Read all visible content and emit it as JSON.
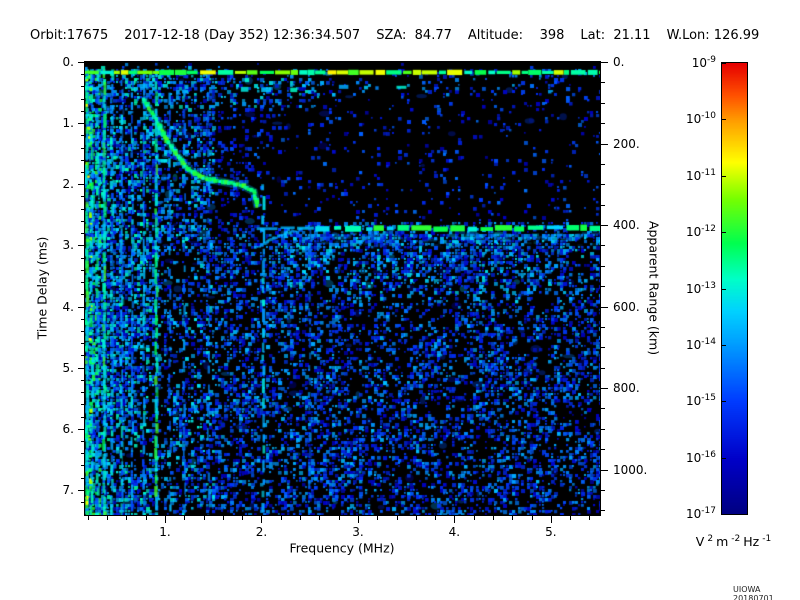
{
  "header": {
    "segments": [
      "Orbit:17675",
      "2017-12-18 (Day 352) 12:36:34.507",
      "SZA:  84.77",
      "Altitude:    398",
      "Lat:  21.11",
      "W.Lon: 126.99"
    ]
  },
  "chart_data": {
    "type": "heatmap",
    "description": "Radar sounder ionogram: received spectral density vs frequency and time delay",
    "xlabel": "Frequency (MHz)",
    "ylabel": "Time Delay (ms)",
    "y2label": "Apparent Range (km)",
    "xlim": [
      0.17,
      5.51
    ],
    "ylim": [
      0,
      7.41
    ],
    "y2lim": [
      0,
      1110
    ],
    "x_ticks": {
      "values": [
        1,
        2,
        3,
        4,
        5
      ],
      "labels": [
        "1.",
        "2.",
        "3.",
        "4.",
        "5."
      ],
      "minor_step": 0.2
    },
    "y_ticks": {
      "values": [
        0,
        1,
        2,
        3,
        4,
        5,
        6,
        7
      ],
      "labels": [
        "0.",
        "1.",
        "2.",
        "3.",
        "4.",
        "5.",
        "6.",
        "7."
      ],
      "minor_step": 0.2
    },
    "y2_ticks": {
      "values": [
        0,
        200,
        400,
        600,
        800,
        1000
      ],
      "labels": [
        "0.",
        "200.",
        "400.",
        "600.",
        "800.",
        "1000."
      ],
      "minor_step": 50,
      "km_per_ms": 150
    },
    "colorbar": {
      "base": "10",
      "tick_exponents": [
        "-9",
        "-10",
        "-11",
        "-12",
        "-13",
        "-14",
        "-15",
        "-16",
        "-17"
      ],
      "unit_parts": [
        {
          "text": "V",
          "sup": "2"
        },
        {
          "text": "m",
          "sup": "-2"
        },
        {
          "text": "Hz",
          "sup": "-1"
        }
      ],
      "gradient_stops": [
        {
          "pos": 0.0,
          "color": "#000082"
        },
        {
          "pos": 0.12,
          "color": "#0000c8"
        },
        {
          "pos": 0.25,
          "color": "#003cff"
        },
        {
          "pos": 0.38,
          "color": "#00a0ff"
        },
        {
          "pos": 0.45,
          "color": "#00d2ff"
        },
        {
          "pos": 0.52,
          "color": "#00ffc8"
        },
        {
          "pos": 0.6,
          "color": "#00ff50"
        },
        {
          "pos": 0.7,
          "color": "#78ff00"
        },
        {
          "pos": 0.78,
          "color": "#ffff00"
        },
        {
          "pos": 0.87,
          "color": "#ffa000"
        },
        {
          "pos": 0.93,
          "color": "#ff5000"
        },
        {
          "pos": 1.0,
          "color": "#e60000"
        }
      ]
    },
    "features": {
      "noise_seed": 1337,
      "direct_signal_delay_ms": 0.17,
      "plasma_harmonic_freqs_mhz": [
        0.19,
        0.24,
        0.3,
        0.37,
        0.45,
        0.55,
        0.66,
        0.78,
        0.91,
        1.05,
        1.2,
        1.45
      ],
      "ionosphere_trace_f_t": [
        [
          0.78,
          0.62
        ],
        [
          0.9,
          0.92
        ],
        [
          1.0,
          1.22
        ],
        [
          1.12,
          1.52
        ],
        [
          1.25,
          1.76
        ],
        [
          1.4,
          1.9
        ],
        [
          1.6,
          1.96
        ],
        [
          1.8,
          2.02
        ],
        [
          1.92,
          2.12
        ],
        [
          1.96,
          2.38
        ]
      ],
      "cusp_arc_f_t": [
        [
          1.98,
          3.02
        ],
        [
          2.1,
          2.9
        ],
        [
          2.25,
          2.8
        ],
        [
          2.42,
          2.74
        ]
      ],
      "surface_echo": {
        "delay_ms": 2.72,
        "freq_start_mhz": 1.95,
        "bright_from_mhz": 2.4
      },
      "vertical_echo_lines": [
        {
          "freq_mhz": 2.02,
          "from_delay_ms": 2.0
        },
        {
          "freq_mhz": 2.5,
          "from_delay_ms": 2.75
        }
      ]
    }
  },
  "credit": "UIOWA 20180701"
}
